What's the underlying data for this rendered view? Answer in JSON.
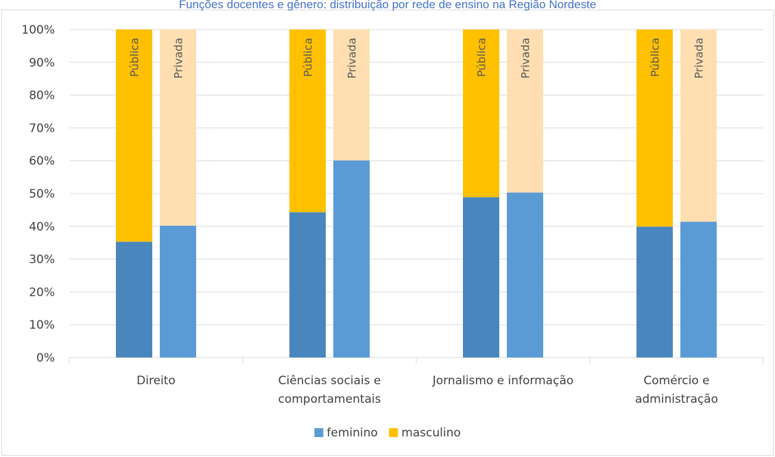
{
  "chart_data": {
    "type": "bar",
    "title": "Funções docentes e gênero: distribuição por rede de ensino na Região Nordeste",
    "categories": [
      {
        "label_lines": [
          "Direito"
        ]
      },
      {
        "label_lines": [
          "Ciências sociais e",
          "comportamentais"
        ]
      },
      {
        "label_lines": [
          "Jornalismo e informação"
        ]
      },
      {
        "label_lines": [
          "Comércio e",
          "administração"
        ]
      }
    ],
    "bar_labels": [
      "Pública",
      "Privada"
    ],
    "stacked_percent": true,
    "series": [
      {
        "name": "feminino",
        "colors": {
          "Pública": "#4a86be",
          "Privada": "#5b9bd5"
        },
        "values": [
          [
            35.3,
            40.2
          ],
          [
            44.3,
            60.1
          ],
          [
            48.9,
            50.3
          ],
          [
            39.9,
            41.4
          ]
        ]
      },
      {
        "name": "masculino",
        "colors": {
          "Pública": "#ffc000",
          "Privada": "#ffdfb1"
        },
        "values": [
          [
            64.7,
            59.8
          ],
          [
            55.7,
            39.9
          ],
          [
            51.1,
            49.7
          ],
          [
            60.1,
            58.6
          ]
        ]
      }
    ],
    "ylim": [
      0,
      100
    ],
    "yticks": [
      "0%",
      "10%",
      "20%",
      "30%",
      "40%",
      "50%",
      "60%",
      "70%",
      "80%",
      "90%",
      "100%"
    ],
    "grid": true,
    "legend_position": "bottom",
    "legend": [
      {
        "label": "feminino",
        "color": "#5b9bd5"
      },
      {
        "label": "masculino",
        "color": "#ffc000"
      }
    ],
    "colors": {
      "title": "#4472c4",
      "grid": "#d9d9d9",
      "text": "#404040",
      "bar_label": "#595959"
    }
  }
}
